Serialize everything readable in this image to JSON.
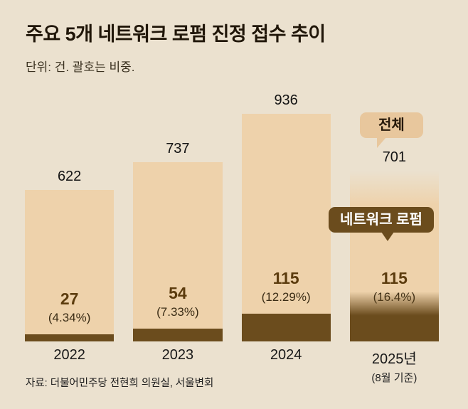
{
  "header": {
    "title": "주요 5개 네트워크 로펌 진정 접수 추이",
    "subtitle": "단위: 건. 괄호는 비중."
  },
  "labels": {
    "total_callout": "전체",
    "network_callout": "네트워크 로펌"
  },
  "footer": {
    "source": "자료: 더불어민주당 전현희 의원실, 서울변회"
  },
  "colors": {
    "background": "#ebe1cf",
    "bar_fill": "#eed2ab",
    "segment_fill": "#6b4c1d",
    "title_text": "#201609",
    "callout_total_bg": "#e8c79d",
    "callout_network_text": "#ffffff",
    "network_value_text": "#5c3c0e"
  },
  "chart_data": {
    "type": "bar",
    "title": "주요 5개 네트워크 로펌 진정 접수 추이",
    "unit_note": "단위: 건. 괄호는 비중.",
    "categories": [
      "2022",
      "2023",
      "2024",
      "2025년"
    ],
    "category_notes": [
      "",
      "",
      "",
      "(8월 기준)"
    ],
    "series": [
      {
        "name": "전체",
        "values": [
          622,
          737,
          936,
          701
        ]
      },
      {
        "name": "네트워크 로펌",
        "values": [
          27,
          54,
          115,
          115
        ]
      }
    ],
    "share_labels": [
      "(4.34%)",
      "(7.33%)",
      "(12.29%)",
      "(16.4%)"
    ],
    "ylim": [
      0,
      936
    ],
    "grid": false,
    "legend_position": "callouts-on-last-bar",
    "partial_last_bar": true
  }
}
